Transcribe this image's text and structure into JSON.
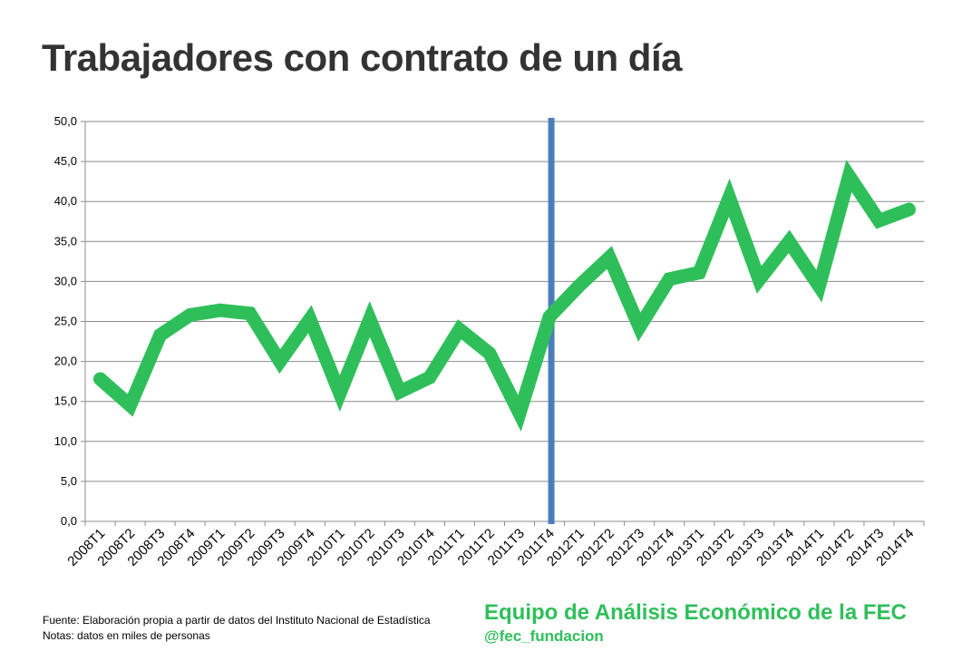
{
  "chart_data": {
    "type": "line",
    "title": "Trabajadores con contrato de un día",
    "xlabel": "",
    "ylabel": "",
    "ylim": [
      0,
      50
    ],
    "grid": true,
    "ytick_labels": [
      "0,0",
      "5,0",
      "10,0",
      "15,0",
      "20,0",
      "25,0",
      "30,0",
      "35,0",
      "40,0",
      "45,0",
      "50,0"
    ],
    "categories": [
      "2008T1",
      "2008T2",
      "2008T3",
      "2008T4",
      "2009T1",
      "2009T2",
      "2009T3",
      "2009T4",
      "2010T1",
      "2010T2",
      "2010T3",
      "2010T4",
      "2011T1",
      "2011T2",
      "2011T3",
      "2011T4",
      "2012T1",
      "2012T2",
      "2012T3",
      "2012T4",
      "2013T1",
      "2013T2",
      "2013T3",
      "2013T4",
      "2014T1",
      "2014T2",
      "2014T3",
      "2014T4"
    ],
    "series": [
      {
        "name": "Trabajadores con contrato de un día",
        "color": "#2fbf5a",
        "values": [
          17.8,
          14.5,
          23.3,
          25.8,
          26.4,
          26.0,
          20.0,
          25.3,
          16.0,
          25.3,
          16.2,
          18.0,
          24.0,
          21.0,
          13.5,
          25.6,
          29.5,
          33.0,
          24.3,
          30.3,
          31.1,
          40.5,
          30.2,
          35.0,
          29.4,
          43.2,
          37.6,
          39.0
        ]
      }
    ],
    "marker_line": {
      "after_category": "2011T4",
      "color": "#4a7ebb"
    }
  },
  "footer": {
    "source_line": "Fuente: Elaboración propia a partir de datos del Instituto Nacional de Estadística",
    "notes_line": "Notas: datos en miles de personas",
    "team": "Equipo de Análisis Económico de la FEC",
    "handle": "@fec_fundacion"
  },
  "colors": {
    "line": "#2fbf5a",
    "marker": "#4a7ebb",
    "brand": "#2fbf5a",
    "title": "#333333"
  }
}
